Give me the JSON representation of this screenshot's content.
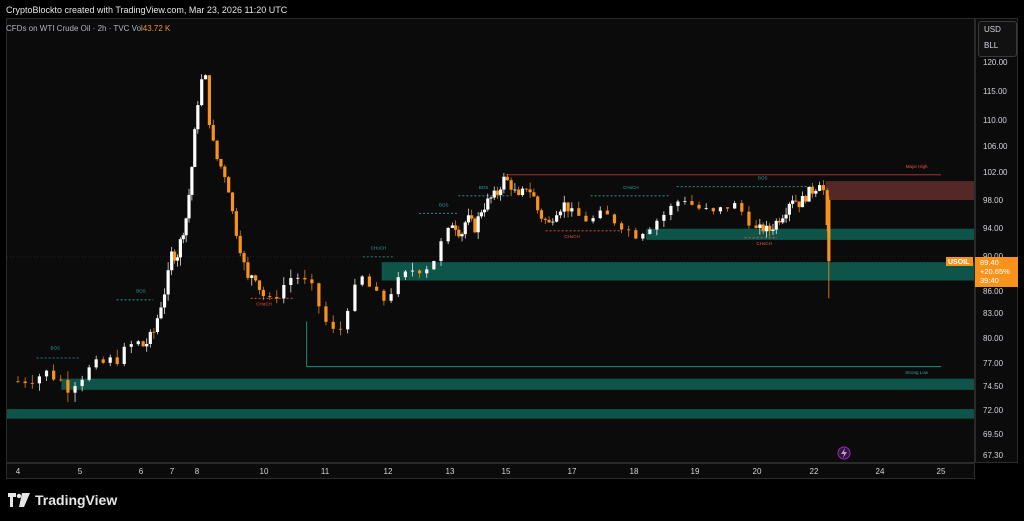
{
  "caption": "CryptoBlockto created with TradingView.com, Mar 23, 2026 11:20 UTC",
  "legend": {
    "symbol": "CFDs on WTI Crude Oil · 2h · TVC",
    "vol_label": "Vol",
    "vol_value": "43.72 K"
  },
  "units": {
    "currency": "USD",
    "unit": "BLL"
  },
  "footer": {
    "brand": "TradingView"
  },
  "colors": {
    "up": "#ffffff",
    "down": "#f7931a",
    "demand": "#0f5c4f",
    "supply": "#5a2a2a",
    "bos": "#26a69a",
    "choch_bear": "#ef5350",
    "badge": "#f7931a"
  },
  "price_badge": {
    "ticker": "USOIL",
    "price": "89.40",
    "change": "+20.65%",
    "countdown": "39:40"
  },
  "chart_data": {
    "type": "candlestick",
    "title": "",
    "ylim": [
      67.3,
      125.5
    ],
    "y_ticks": [
      "120.00",
      "115.00",
      "110.00",
      "106.00",
      "102.00",
      "98.00",
      "94.00",
      "90.00",
      "86.00",
      "83.00",
      "80.00",
      "77.00",
      "74.50",
      "72.00",
      "69.50",
      "67.30"
    ],
    "x_ticks": [
      "4",
      "5",
      "6",
      "7",
      "8",
      "10",
      "11",
      "12",
      "13",
      "15",
      "17",
      "18",
      "19",
      "20",
      "22",
      "24",
      "25"
    ],
    "price_path": [
      [
        4.0,
        75.0
      ],
      [
        4.5,
        76.0
      ],
      [
        4.8,
        74.5
      ],
      [
        5.2,
        76.5
      ],
      [
        5.6,
        77.5
      ],
      [
        5.9,
        79.5
      ],
      [
        6.1,
        79.0
      ],
      [
        6.4,
        80.5
      ],
      [
        6.7,
        85.0
      ],
      [
        6.9,
        88.0
      ],
      [
        7.0,
        90.5
      ],
      [
        7.2,
        90.0
      ],
      [
        7.4,
        93.0
      ],
      [
        7.6,
        96.0
      ],
      [
        7.8,
        103.0
      ],
      [
        8.0,
        112.0
      ],
      [
        8.1,
        116.5
      ],
      [
        8.25,
        117.5
      ],
      [
        8.4,
        108.0
      ],
      [
        8.6,
        104.0
      ],
      [
        8.9,
        101.0
      ],
      [
        9.1,
        95.0
      ],
      [
        9.3,
        91.0
      ],
      [
        9.5,
        87.0
      ],
      [
        9.7,
        88.5
      ],
      [
        9.9,
        86.0
      ],
      [
        10.1,
        84.5
      ],
      [
        10.3,
        86.5
      ],
      [
        10.5,
        88.0
      ],
      [
        10.8,
        86.0
      ],
      [
        11.0,
        82.0
      ],
      [
        11.2,
        80.0
      ],
      [
        11.4,
        85.0
      ],
      [
        11.6,
        87.5
      ],
      [
        11.9,
        84.5
      ],
      [
        12.1,
        86.5
      ],
      [
        12.4,
        88.5
      ],
      [
        12.7,
        89.0
      ],
      [
        12.9,
        92.5
      ],
      [
        13.1,
        95.0
      ],
      [
        13.4,
        93.0
      ],
      [
        13.6,
        95.5
      ],
      [
        13.9,
        94.0
      ],
      [
        14.1,
        96.5
      ],
      [
        14.4,
        98.0
      ],
      [
        14.7,
        99.0
      ],
      [
        14.9,
        101.0
      ],
      [
        15.1,
        100.5
      ],
      [
        15.4,
        98.0
      ],
      [
        15.6,
        100.0
      ],
      [
        15.8,
        99.0
      ],
      [
        16.0,
        96.0
      ],
      [
        16.3,
        94.5
      ],
      [
        16.5,
        96.5
      ],
      [
        16.8,
        97.5
      ],
      [
        17.0,
        96.0
      ],
      [
        17.3,
        95.0
      ],
      [
        17.5,
        96.0
      ],
      [
        17.8,
        94.5
      ],
      [
        18.0,
        93.0
      ],
      [
        18.2,
        94.0
      ],
      [
        18.5,
        96.0
      ],
      [
        18.8,
        98.5
      ],
      [
        19.0,
        97.0
      ],
      [
        19.3,
        96.0
      ],
      [
        19.6,
        97.5
      ],
      [
        19.8,
        96.0
      ],
      [
        20.0,
        93.5
      ],
      [
        20.2,
        94.0
      ],
      [
        20.4,
        93.5
      ],
      [
        20.7,
        95.0
      ],
      [
        21.0,
        96.5
      ],
      [
        21.2,
        98.5
      ],
      [
        21.5,
        97.5
      ],
      [
        21.8,
        99.0
      ],
      [
        22.0,
        99.5
      ],
      [
        22.2,
        101.0
      ],
      [
        22.35,
        98.0
      ],
      [
        22.45,
        89.4
      ]
    ],
    "zones": [
      {
        "kind": "supply",
        "x1": 22.35,
        "x2": 25.6,
        "y1": 98.0,
        "y2": 100.7
      },
      {
        "kind": "demand",
        "x1": 18.2,
        "x2": 25.6,
        "y1": 92.3,
        "y2": 93.9
      },
      {
        "kind": "demand",
        "x1": 11.9,
        "x2": 25.6,
        "y1": 87.2,
        "y2": 89.3
      },
      {
        "kind": "demand",
        "x1": 4.7,
        "x2": 25.6,
        "y1": 74.1,
        "y2": 75.3
      },
      {
        "kind": "demand",
        "x1": 3.7,
        "x2": 25.6,
        "y1": 71.1,
        "y2": 72.1
      }
    ],
    "lines": [
      {
        "kind": "major_high",
        "x1": 15.0,
        "x2": 25.0,
        "y": 101.6
      },
      {
        "kind": "strong_low",
        "x1": 10.7,
        "x2": 25.0,
        "y": 76.6
      },
      {
        "kind": "bos",
        "x1": 4.3,
        "x2": 5.0,
        "y": 77.6
      },
      {
        "kind": "bos",
        "x1": 5.6,
        "x2": 6.4,
        "y": 84.8
      },
      {
        "kind": "choch_bear",
        "x1": 9.6,
        "x2": 10.5,
        "y": 85.0
      },
      {
        "kind": "choch",
        "x1": 11.6,
        "x2": 12.1,
        "y": 89.9
      },
      {
        "kind": "bos",
        "x1": 12.5,
        "x2": 13.3,
        "y": 96.1
      },
      {
        "kind": "bos",
        "x1": 13.3,
        "x2": 15.1,
        "y": 98.6
      },
      {
        "kind": "choch_bear",
        "x1": 16.2,
        "x2": 17.8,
        "y": 93.6
      },
      {
        "kind": "choch",
        "x1": 17.3,
        "x2": 18.6,
        "y": 98.6
      },
      {
        "kind": "choch_bear",
        "x1": 19.8,
        "x2": 20.7,
        "y": 92.6
      },
      {
        "kind": "bos",
        "x1": 18.7,
        "x2": 22.0,
        "y": 99.9
      }
    ],
    "annotations": [
      {
        "text": "BOS",
        "x": 4.6,
        "y": 78.6,
        "kind": "bos"
      },
      {
        "text": "BOS",
        "x": 6.0,
        "y": 85.8,
        "kind": "bos"
      },
      {
        "text": "CHoCH",
        "x": 10.0,
        "y": 84.0,
        "kind": "choch_bear"
      },
      {
        "text": "CHoCH",
        "x": 11.85,
        "y": 90.9,
        "kind": "choch"
      },
      {
        "text": "BOS",
        "x": 12.9,
        "y": 97.1,
        "kind": "bos"
      },
      {
        "text": "BOS",
        "x": 14.2,
        "y": 99.6,
        "kind": "bos"
      },
      {
        "text": "CHoCH",
        "x": 17.0,
        "y": 92.6,
        "kind": "choch_bear"
      },
      {
        "text": "CHoCH",
        "x": 17.95,
        "y": 99.6,
        "kind": "choch"
      },
      {
        "text": "CHoCH",
        "x": 20.25,
        "y": 91.6,
        "kind": "choch_bear"
      },
      {
        "text": "BOS",
        "x": 20.2,
        "y": 100.9,
        "kind": "bos"
      },
      {
        "text": "Major High",
        "x": 24.6,
        "y": 102.6,
        "kind": "major_high"
      },
      {
        "text": "Strong Low",
        "x": 24.6,
        "y": 75.8,
        "kind": "bos"
      }
    ]
  }
}
